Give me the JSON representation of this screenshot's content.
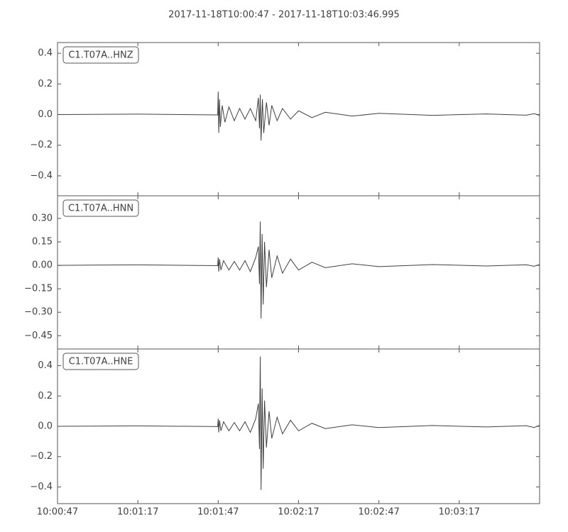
{
  "chart_data": [
    {
      "type": "line",
      "title": "2017-11-18T10:00:47  -  2017-11-18T10:03:46.995",
      "xlim": [
        0,
        180
      ],
      "ylim": [
        -0.53,
        0.47
      ],
      "yticks": [
        {
          "value": -0.4,
          "label": "−0.4"
        },
        {
          "value": -0.2,
          "label": "−0.2"
        },
        {
          "value": 0,
          "label": "0.0"
        },
        0.2,
        0.4
      ],
      "x": [
        0,
        30,
        59.8,
        60.0,
        60.2,
        60.5,
        60.8,
        61.5,
        62.5,
        64,
        66,
        68,
        70,
        72,
        74,
        75,
        75.4,
        75.7,
        76,
        76.5,
        77,
        78,
        79,
        80,
        82,
        84,
        87,
        90,
        95,
        100,
        110,
        120,
        140,
        160,
        175,
        178,
        180
      ],
      "series": [
        {
          "name": "C1.T07A..HNZ",
          "color": "#404040",
          "values": [
            0,
            0.003,
            -0.002,
            0.15,
            -0.12,
            0.1,
            -0.08,
            0.06,
            -0.05,
            0.05,
            -0.04,
            0.04,
            -0.03,
            0.04,
            -0.04,
            0.11,
            -0.09,
            0.13,
            -0.17,
            0.1,
            -0.12,
            0.08,
            -0.07,
            0.06,
            -0.04,
            0.04,
            -0.03,
            0.025,
            -0.02,
            0.015,
            -0.01,
            0.008,
            -0.005,
            0.004,
            -0.004,
            0.006,
            -0.005
          ]
        }
      ]
    },
    {
      "type": "line",
      "xlim": [
        0,
        180
      ],
      "ylim": [
        -0.535,
        0.445
      ],
      "yticks": [
        {
          "value": -0.45,
          "label": "−0.45"
        },
        {
          "value": -0.3,
          "label": "−0.30"
        },
        {
          "value": -0.15,
          "label": "−0.15"
        },
        {
          "value": 0,
          "label": "0.00"
        },
        {
          "value": 0.15,
          "label": "0.15"
        },
        {
          "value": 0.3,
          "label": "0.30"
        }
      ],
      "x": [
        0,
        30,
        59.8,
        60.0,
        60.2,
        60.5,
        61,
        62,
        64,
        66,
        68,
        70,
        72,
        74,
        75,
        75.4,
        75.7,
        76,
        76.4,
        76.8,
        77.3,
        78,
        79,
        80,
        82,
        84,
        87,
        90,
        95,
        100,
        110,
        120,
        140,
        160,
        175,
        178,
        180
      ],
      "series": [
        {
          "name": "C1.T07A..HNN",
          "color": "#404040",
          "values": [
            0,
            0.003,
            -0.002,
            0.05,
            -0.04,
            0.04,
            -0.03,
            0.03,
            -0.03,
            0.025,
            -0.03,
            0.03,
            -0.04,
            0.05,
            0.12,
            -0.12,
            0.28,
            -0.34,
            0.2,
            -0.25,
            0.15,
            -0.14,
            0.1,
            -0.08,
            0.06,
            -0.05,
            0.04,
            -0.03,
            0.02,
            -0.015,
            0.01,
            -0.008,
            0.005,
            -0.004,
            0.004,
            -0.006,
            0.005
          ]
        }
      ]
    },
    {
      "type": "line",
      "xlim": [
        0,
        180
      ],
      "ylim": [
        -0.51,
        0.51
      ],
      "xticks": [
        {
          "value": 0,
          "label": "10:00:47"
        },
        {
          "value": 30,
          "label": "10:01:17"
        },
        {
          "value": 60,
          "label": "10:01:47"
        },
        {
          "value": 90,
          "label": "10:02:17"
        },
        {
          "value": 120,
          "label": "10:02:47"
        },
        {
          "value": 150,
          "label": "10:03:17"
        }
      ],
      "yticks": [
        {
          "value": -0.4,
          "label": "−0.4"
        },
        {
          "value": -0.2,
          "label": "−0.2"
        },
        {
          "value": 0,
          "label": "0.0"
        },
        0.2,
        0.4
      ],
      "x": [
        0,
        30,
        59.8,
        60.0,
        60.2,
        60.5,
        61,
        62,
        64,
        66,
        68,
        70,
        72,
        74,
        75,
        75.4,
        75.7,
        76,
        76.4,
        76.8,
        77.3,
        78,
        79,
        80,
        82,
        84,
        87,
        90,
        95,
        100,
        110,
        120,
        140,
        160,
        175,
        178,
        180
      ],
      "series": [
        {
          "name": "C1.T07A..HNE",
          "color": "#404040",
          "values": [
            0,
            0.003,
            -0.002,
            0.05,
            -0.04,
            0.04,
            -0.03,
            0.03,
            -0.03,
            0.025,
            -0.03,
            0.03,
            -0.04,
            0.05,
            0.15,
            -0.15,
            0.46,
            -0.42,
            0.25,
            -0.28,
            0.17,
            -0.14,
            0.1,
            -0.08,
            0.06,
            -0.05,
            0.04,
            -0.03,
            0.02,
            -0.015,
            0.01,
            -0.008,
            0.005,
            -0.004,
            0.004,
            -0.008,
            0.006
          ]
        }
      ]
    }
  ]
}
